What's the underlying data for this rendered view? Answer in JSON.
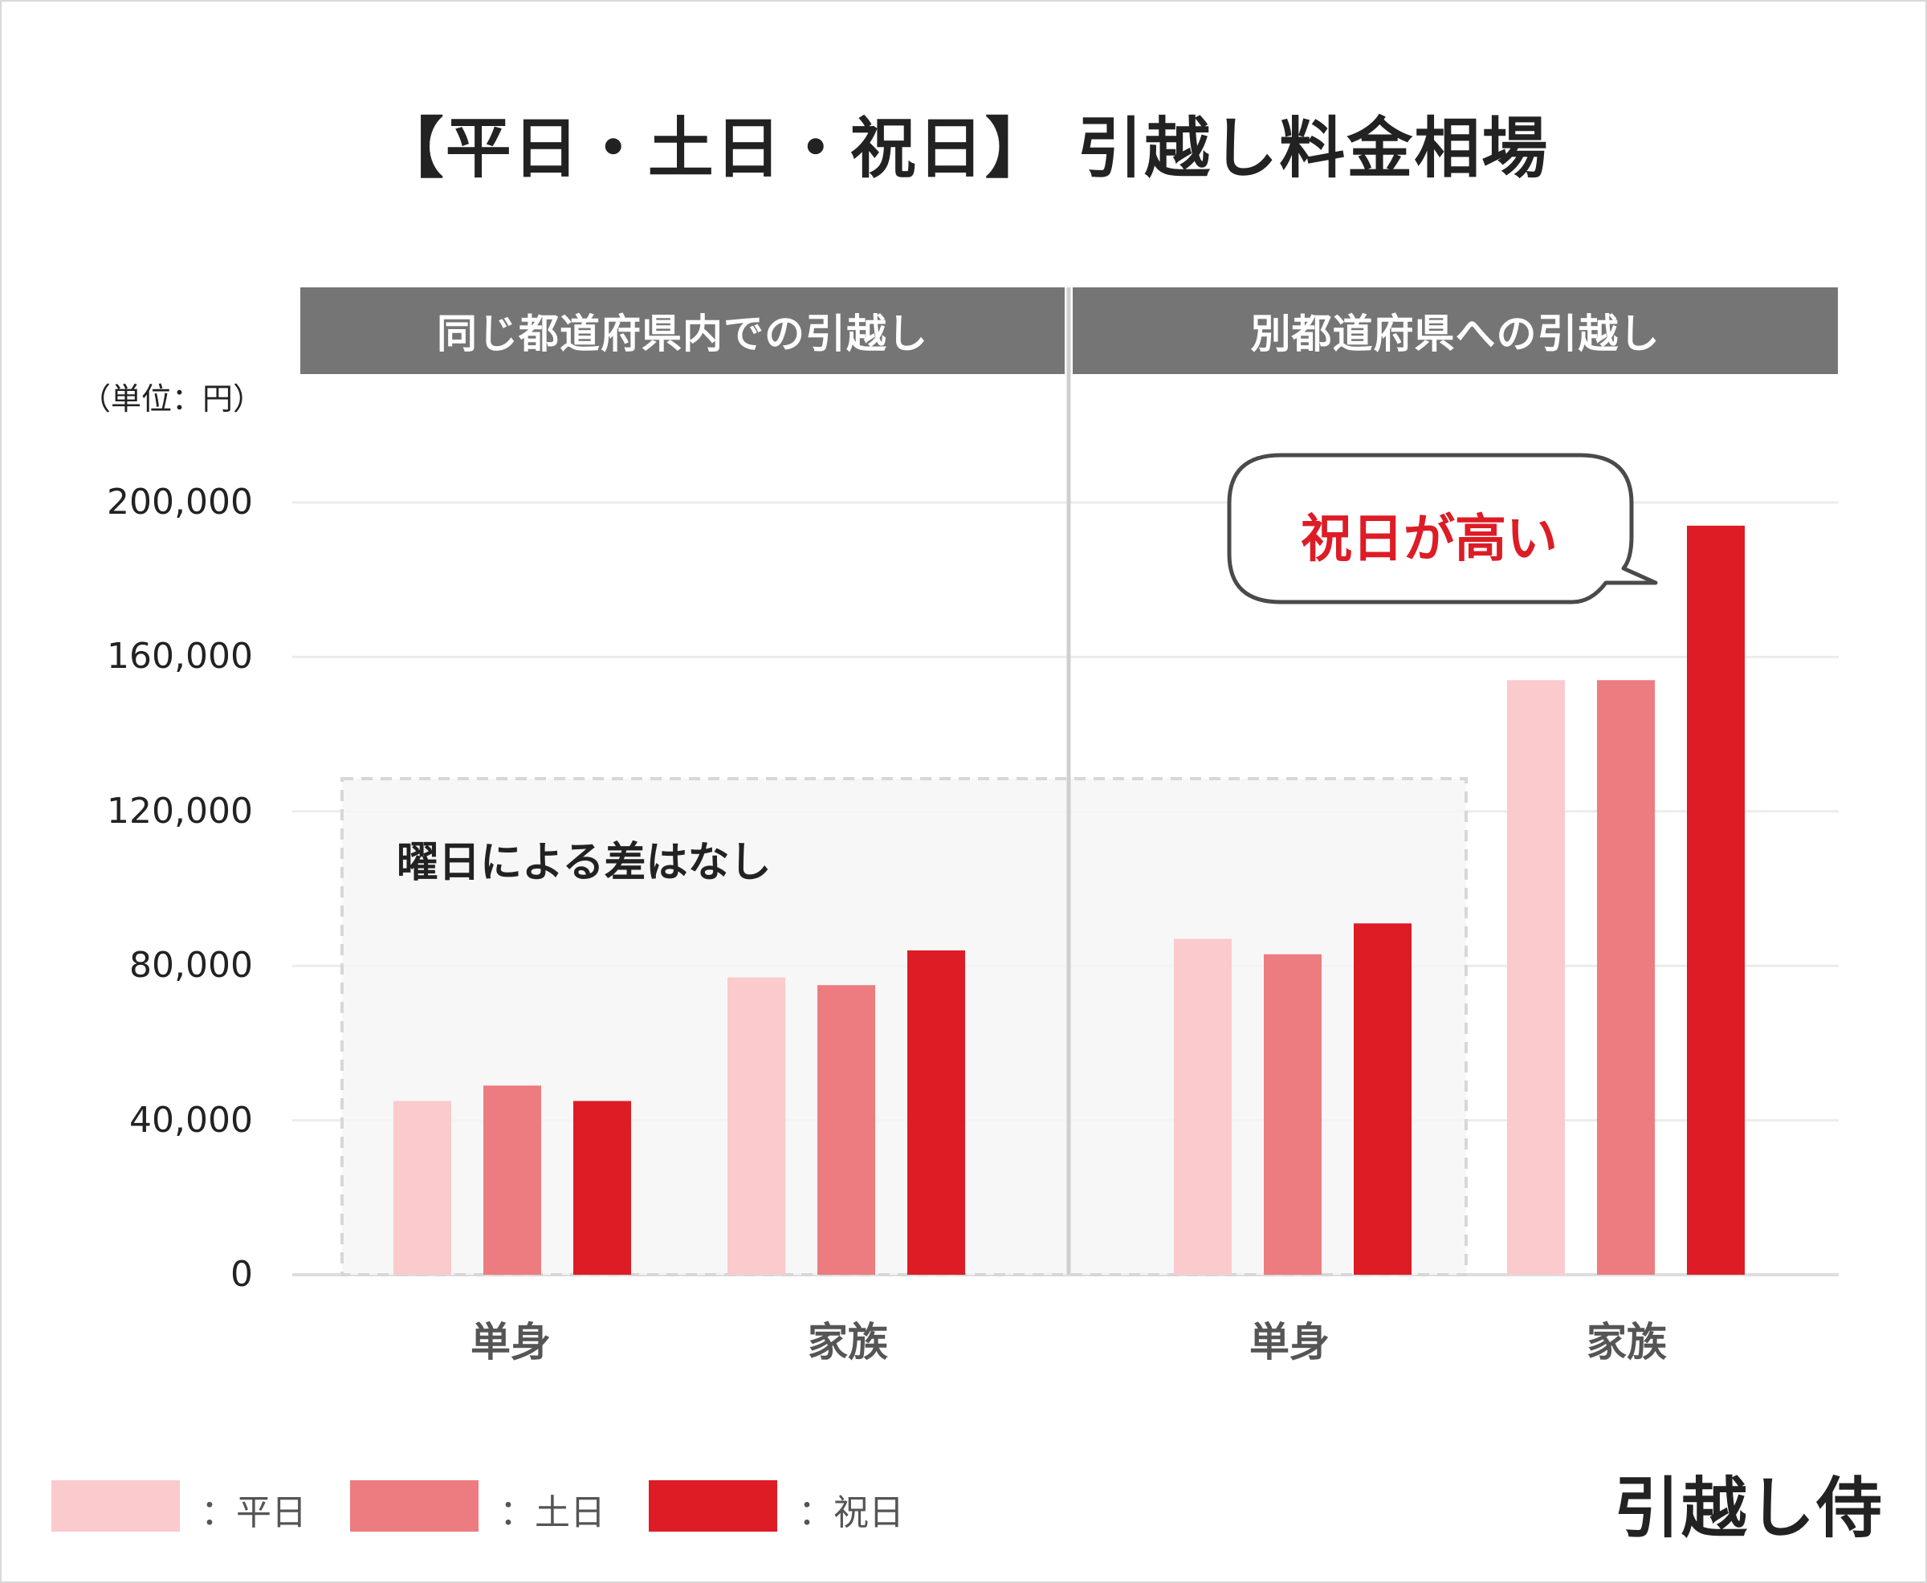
{
  "title": "【平日・土日・祝日】 引越し料金相場",
  "unit_label": "（単位：円）",
  "panels": [
    {
      "label": "同じ都道府県内での引越し"
    },
    {
      "label": "別都道府県への引越し"
    }
  ],
  "annotations": {
    "note": "曜日による差はなし",
    "callout": "祝日が高い"
  },
  "legend": [
    {
      "label": "：平日",
      "color": "#fbcacc"
    },
    {
      "label": "：土日",
      "color": "#ec7c80"
    },
    {
      "label": "：祝日",
      "color": "#dd1c26"
    }
  ],
  "brand": "引越し侍",
  "chart_data": {
    "type": "bar",
    "title": "【平日・土日・祝日】 引越し料金相場",
    "ylabel": "（単位：円）",
    "ylim": [
      0,
      200000
    ],
    "yticks": [
      0,
      40000,
      80000,
      120000,
      160000,
      200000
    ],
    "ytick_labels": [
      "0",
      "40,000",
      "80,000",
      "120,000",
      "160,000",
      "200,000"
    ],
    "grid": true,
    "legend_position": "bottom-left",
    "groups": [
      {
        "name": "同じ都道府県内での引越し",
        "categories": [
          "単身",
          "家族"
        ],
        "series": [
          {
            "name": "平日",
            "values": [
              45000,
              77000
            ]
          },
          {
            "name": "土日",
            "values": [
              49000,
              75000
            ]
          },
          {
            "name": "祝日",
            "values": [
              45000,
              84000
            ]
          }
        ]
      },
      {
        "name": "別都道府県への引越し",
        "categories": [
          "単身",
          "家族"
        ],
        "series": [
          {
            "name": "平日",
            "values": [
              87000,
              154000
            ]
          },
          {
            "name": "土日",
            "values": [
              83000,
              154000
            ]
          },
          {
            "name": "祝日",
            "values": [
              91000,
              194000
            ]
          }
        ]
      }
    ]
  }
}
